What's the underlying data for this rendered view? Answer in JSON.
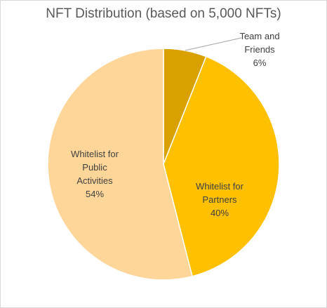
{
  "chart_data": {
    "type": "pie",
    "title": "NFT Distribution (based on 5,000 NFTs)",
    "slices": [
      {
        "label_lines": [
          "Team and",
          "Friends",
          "6%"
        ],
        "value": 6,
        "color": "#d9a100",
        "name": "Team and Friends"
      },
      {
        "label_lines": [
          "Whitelist for",
          "Partners",
          "40%"
        ],
        "value": 40,
        "color": "#ffc000",
        "name": "Whitelist for Partners"
      },
      {
        "label_lines": [
          "Whitelist for",
          "Public",
          "Activities",
          "54%"
        ],
        "value": 54,
        "color": "#ffd699",
        "name": "Whitelist for Public Activities"
      }
    ],
    "legend": "none",
    "start_angle_deg": 0,
    "direction": "clockwise"
  }
}
